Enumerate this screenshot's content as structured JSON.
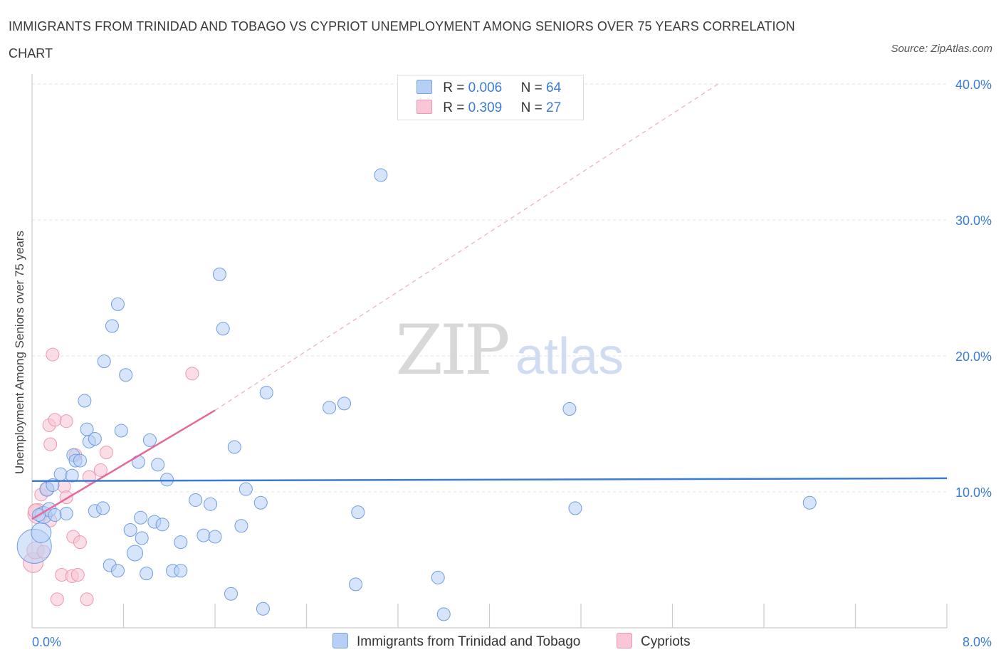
{
  "title": "IMMIGRANTS FROM TRINIDAD AND TOBAGO VS CYPRIOT UNEMPLOYMENT AMONG SENIORS OVER 75 YEARS CORRELATION CHART",
  "source": "Source: ZipAtlas.com",
  "watermark": {
    "zip": "ZIP",
    "atlas": "atlas"
  },
  "colors": {
    "blue": "#3a7bd5",
    "blue_fill": "#b6cff5",
    "pink": "#e8679a",
    "pink_fill": "#f8c6d6",
    "grid": "#e3e3e3"
  },
  "legend": {
    "rows": [
      {
        "r_label": "R =",
        "r_value": "0.006",
        "n_label": "N =",
        "n_value": "64"
      },
      {
        "r_label": "R =",
        "r_value": "0.309",
        "n_label": "N =",
        "n_value": "27"
      }
    ]
  },
  "bottom_legend": [
    {
      "label": "Immigrants from Trinidad and Tobago"
    },
    {
      "label": "Cypriots"
    }
  ],
  "chart_data": {
    "type": "scatter",
    "title": "IMMIGRANTS FROM TRINIDAD AND TOBAGO VS CYPRIOT UNEMPLOYMENT AMONG SENIORS OVER 75 YEARS CORRELATION CHART",
    "xlabel": "",
    "ylabel": "Unemployment Among Seniors over 75 years",
    "xlim": [
      0,
      8
    ],
    "ylim": [
      0,
      40
    ],
    "x_tick_labels": [
      "0.0%",
      "8.0%"
    ],
    "y_ticks": [
      10,
      20,
      30,
      40
    ],
    "y_tick_labels": [
      "10.0%",
      "20.0%",
      "30.0%",
      "40.0%"
    ],
    "grid": true,
    "series": [
      {
        "name": "Immigrants from Trinidad and Tobago",
        "color": "#3a7bd5",
        "R": 0.006,
        "N": 64,
        "trend": {
          "x": [
            0,
            8
          ],
          "y": [
            10.8,
            11.0
          ]
        },
        "points": [
          [
            0.02,
            6.0,
            24
          ],
          [
            0.08,
            7.0,
            14
          ],
          [
            0.1,
            8.3,
            12
          ],
          [
            0.13,
            10.2,
            10
          ],
          [
            0.15,
            8.7,
            10
          ],
          [
            0.18,
            10.5,
            9
          ],
          [
            0.2,
            8.3,
            9
          ],
          [
            0.25,
            11.3,
            9
          ],
          [
            0.3,
            8.4,
            9
          ],
          [
            0.35,
            11.2,
            9
          ],
          [
            0.36,
            12.7,
            9
          ],
          [
            0.38,
            12.3,
            9
          ],
          [
            0.42,
            12.3,
            9
          ],
          [
            0.46,
            16.7,
            9
          ],
          [
            0.48,
            14.6,
            9
          ],
          [
            0.5,
            13.7,
            9
          ],
          [
            0.55,
            13.9,
            9
          ],
          [
            0.55,
            8.6,
            9
          ],
          [
            0.62,
            8.8,
            9
          ],
          [
            0.63,
            19.6,
            9
          ],
          [
            0.68,
            4.6,
            9
          ],
          [
            0.7,
            22.2,
            9
          ],
          [
            0.75,
            23.8,
            9
          ],
          [
            0.75,
            4.2,
            9
          ],
          [
            0.78,
            14.5,
            9
          ],
          [
            0.82,
            18.6,
            9
          ],
          [
            0.86,
            7.2,
            9
          ],
          [
            0.9,
            5.5,
            11
          ],
          [
            0.93,
            12.2,
            9
          ],
          [
            0.95,
            8.1,
            9
          ],
          [
            0.96,
            6.6,
            9
          ],
          [
            1.0,
            4.0,
            9
          ],
          [
            1.03,
            13.8,
            9
          ],
          [
            1.07,
            7.8,
            9
          ],
          [
            1.1,
            12.0,
            9
          ],
          [
            1.14,
            7.6,
            9
          ],
          [
            1.18,
            10.9,
            9
          ],
          [
            1.23,
            4.2,
            9
          ],
          [
            1.3,
            4.2,
            9
          ],
          [
            1.3,
            6.3,
            9
          ],
          [
            1.43,
            9.4,
            9
          ],
          [
            1.5,
            6.8,
            9
          ],
          [
            1.56,
            9.1,
            9
          ],
          [
            1.6,
            6.7,
            9
          ],
          [
            1.64,
            26.0,
            9
          ],
          [
            1.67,
            22.0,
            9
          ],
          [
            1.74,
            2.5,
            9
          ],
          [
            1.77,
            13.3,
            9
          ],
          [
            1.83,
            7.5,
            9
          ],
          [
            1.87,
            10.2,
            9
          ],
          [
            2.0,
            9.2,
            9
          ],
          [
            2.02,
            1.4,
            9
          ],
          [
            2.05,
            17.3,
            9
          ],
          [
            2.6,
            16.2,
            9
          ],
          [
            2.73,
            16.5,
            9
          ],
          [
            2.83,
            3.2,
            9
          ],
          [
            2.85,
            8.5,
            9
          ],
          [
            3.05,
            33.3,
            9
          ],
          [
            3.55,
            3.7,
            9
          ],
          [
            3.6,
            1.0,
            9
          ],
          [
            4.7,
            16.1,
            9
          ],
          [
            4.75,
            8.8,
            9
          ],
          [
            6.8,
            9.2,
            9
          ],
          [
            0.06,
            8.3,
            9
          ]
        ]
      },
      {
        "name": "Cypriots",
        "color": "#e8679a",
        "R": 0.309,
        "N": 27,
        "trend": {
          "x": [
            0,
            1.6
          ],
          "y": [
            8.0,
            16.0
          ]
        },
        "trend_extension": {
          "x": [
            1.6,
            6.0
          ],
          "y": [
            16.0,
            40.0
          ]
        },
        "points": [
          [
            0.01,
            4.8,
            14
          ],
          [
            0.03,
            5.7,
            12
          ],
          [
            0.05,
            8.4,
            14
          ],
          [
            0.08,
            9.8,
            9
          ],
          [
            0.13,
            10.2,
            9
          ],
          [
            0.15,
            14.9,
            9
          ],
          [
            0.16,
            13.5,
            9
          ],
          [
            0.16,
            7.9,
            9
          ],
          [
            0.18,
            20.1,
            9
          ],
          [
            0.2,
            15.3,
            9
          ],
          [
            0.22,
            2.1,
            9
          ],
          [
            0.26,
            3.9,
            9
          ],
          [
            0.28,
            10.4,
            9
          ],
          [
            0.3,
            15.2,
            9
          ],
          [
            0.3,
            9.6,
            9
          ],
          [
            0.35,
            3.8,
            9
          ],
          [
            0.36,
            6.7,
            9
          ],
          [
            0.38,
            12.7,
            9
          ],
          [
            0.4,
            3.9,
            9
          ],
          [
            0.42,
            6.3,
            9
          ],
          [
            0.48,
            2.1,
            9
          ],
          [
            0.5,
            11.1,
            9
          ],
          [
            0.6,
            11.6,
            9
          ],
          [
            0.65,
            12.9,
            9
          ],
          [
            1.4,
            18.7,
            9
          ],
          [
            0.03,
            8.6,
            10
          ],
          [
            0.1,
            5.6,
            9
          ]
        ]
      }
    ]
  }
}
